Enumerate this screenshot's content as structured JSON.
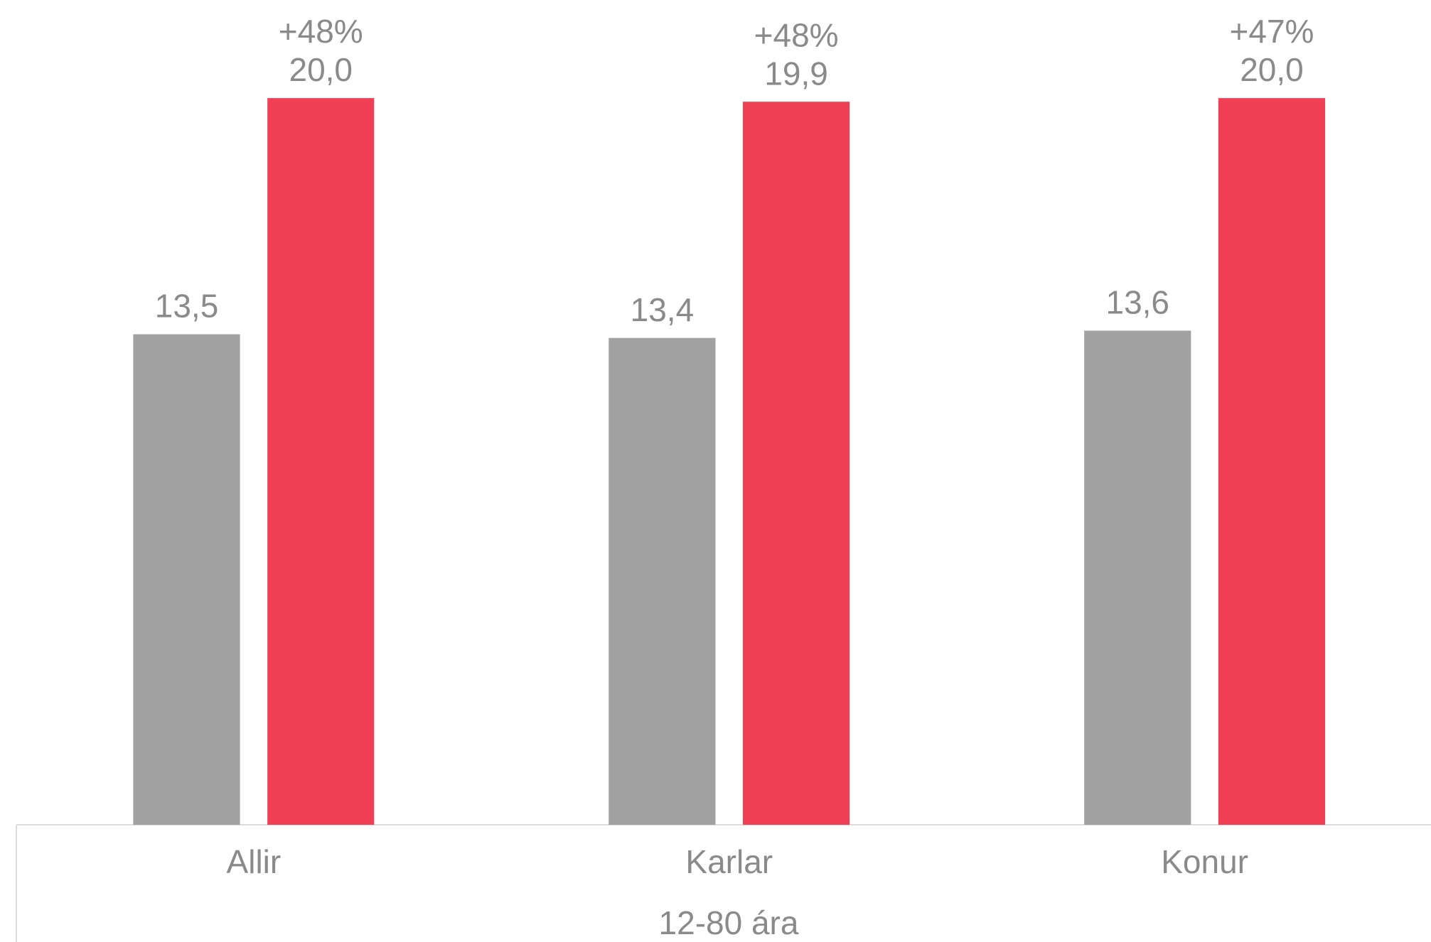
{
  "chart_data": {
    "type": "bar",
    "categories": [
      "Allir",
      "Karlar",
      "Konur"
    ],
    "x_label": "12-80 ára",
    "series": [
      {
        "color": "#a1a1a1",
        "values": [
          13.5,
          13.4,
          13.6
        ],
        "value_labels": [
          "13,5",
          "13,4",
          "13,6"
        ]
      },
      {
        "color": "#ef4055",
        "values": [
          20.0,
          19.9,
          20.0
        ],
        "value_labels": [
          "20,0",
          "19,9",
          "20,0"
        ],
        "change_labels": [
          "+48%",
          "+48%",
          "+47%"
        ]
      }
    ],
    "ylim": [
      0,
      22.7
    ]
  }
}
